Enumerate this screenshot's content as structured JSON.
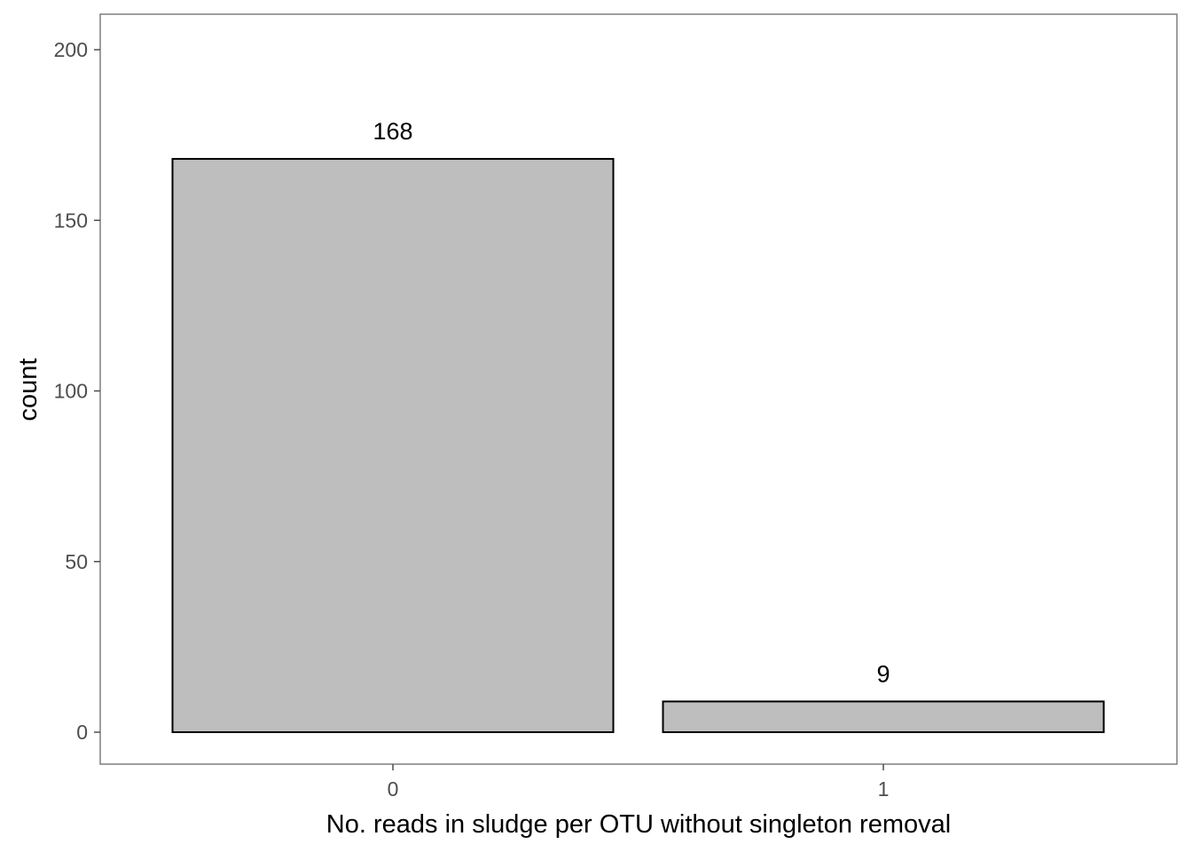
{
  "chart_data": {
    "type": "bar",
    "categories": [
      "0",
      "1"
    ],
    "values": [
      168,
      9
    ],
    "data_labels": [
      "168",
      "9"
    ],
    "title": "",
    "xlabel": "No. reads in sludge per OTU without singleton removal",
    "ylabel": "count",
    "ylim": [
      0,
      200
    ],
    "yticks": [
      0,
      50,
      100,
      150,
      200
    ],
    "ytick_labels": [
      "0",
      "50",
      "100",
      "150",
      "200"
    ],
    "grid": false,
    "legend": "none",
    "bar_fill": "#bebebe",
    "bar_stroke": "#000000",
    "panel_border": "#7f7f7f",
    "tick_color": "#4d4d4d"
  }
}
